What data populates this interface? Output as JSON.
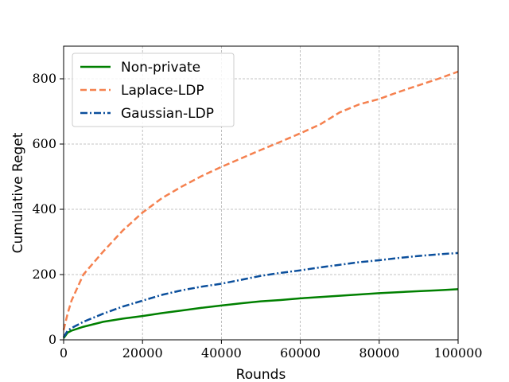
{
  "chart_data": {
    "type": "line",
    "title": "",
    "xlabel": "Rounds",
    "ylabel": "Cumulative Reget",
    "xlim": [
      0,
      100000
    ],
    "ylim": [
      0,
      900
    ],
    "xticks": [
      0,
      20000,
      40000,
      60000,
      80000,
      100000
    ],
    "yticks": [
      0,
      200,
      400,
      600,
      800
    ],
    "grid": true,
    "legend_position": "top-left",
    "series": [
      {
        "name": "Non-private",
        "color": "#008000",
        "dash": "solid",
        "x": [
          0,
          1000,
          2000,
          5000,
          10000,
          15000,
          20000,
          25000,
          30000,
          35000,
          40000,
          45000,
          50000,
          55000,
          60000,
          65000,
          70000,
          75000,
          80000,
          85000,
          90000,
          95000,
          100000
        ],
        "y": [
          5,
          22,
          28,
          40,
          55,
          65,
          73,
          82,
          90,
          98,
          105,
          112,
          118,
          122,
          127,
          131,
          135,
          139,
          143,
          146,
          149,
          152,
          155
        ]
      },
      {
        "name": "Laplace-LDP",
        "color": "#f5814f",
        "dash": "dashed",
        "x": [
          0,
          1000,
          2000,
          5000,
          10000,
          15000,
          20000,
          25000,
          30000,
          35000,
          40000,
          45000,
          50000,
          55000,
          60000,
          65000,
          70000,
          75000,
          80000,
          85000,
          90000,
          95000,
          100000
        ],
        "y": [
          30,
          80,
          120,
          200,
          270,
          335,
          390,
          435,
          470,
          502,
          530,
          556,
          582,
          607,
          633,
          660,
          697,
          722,
          738,
          760,
          780,
          800,
          822
        ]
      },
      {
        "name": "Gaussian-LDP",
        "color": "#0b4f9c",
        "dash": "dashdot",
        "x": [
          0,
          1000,
          2000,
          5000,
          10000,
          15000,
          20000,
          25000,
          30000,
          35000,
          40000,
          45000,
          50000,
          55000,
          60000,
          65000,
          70000,
          75000,
          80000,
          85000,
          90000,
          95000,
          100000
        ],
        "y": [
          8,
          28,
          36,
          55,
          80,
          102,
          120,
          138,
          152,
          163,
          172,
          184,
          196,
          205,
          213,
          222,
          230,
          238,
          244,
          251,
          257,
          262,
          266
        ]
      }
    ]
  }
}
